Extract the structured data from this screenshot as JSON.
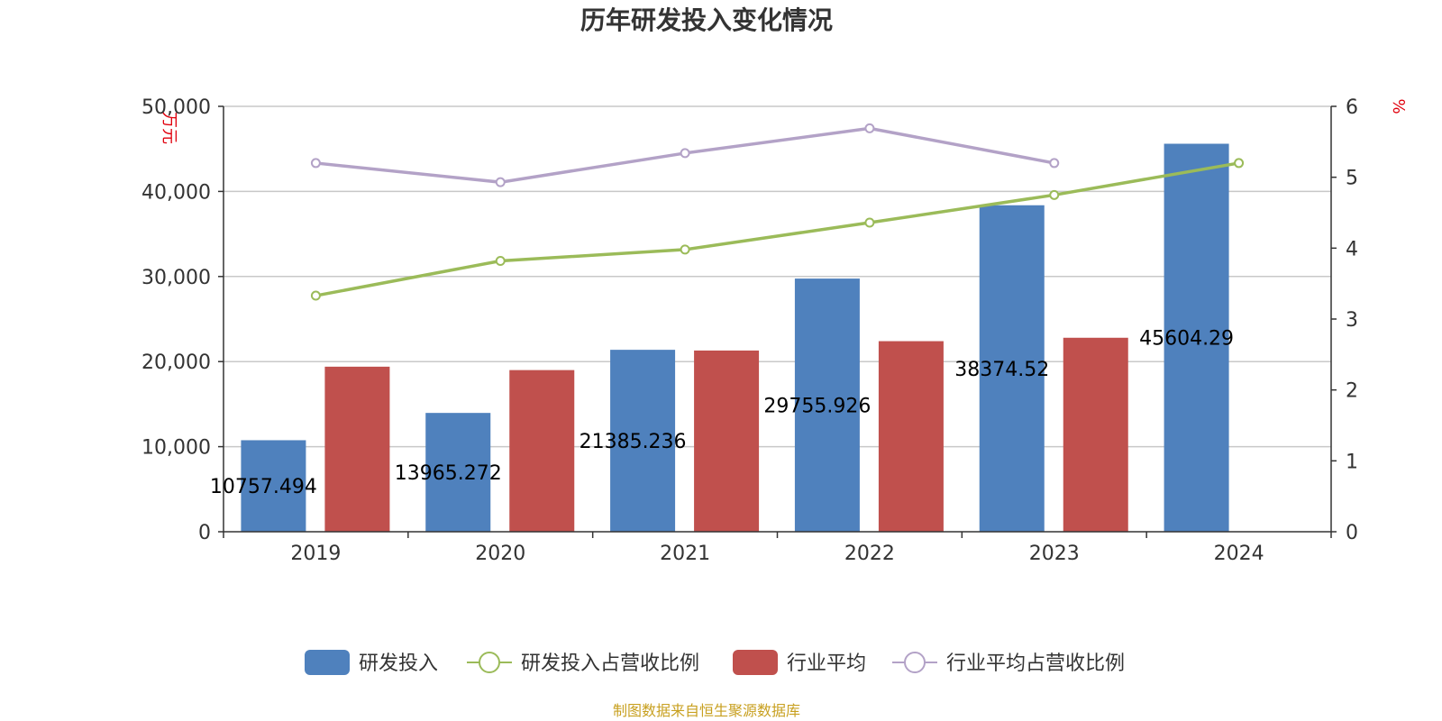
{
  "chart_data": {
    "type": "bar",
    "title": "历年研发投入变化情况",
    "categories": [
      "2019",
      "2020",
      "2021",
      "2022",
      "2023",
      "2024"
    ],
    "y_left": {
      "unit": "万元",
      "min": 0,
      "max": 50000,
      "ticks": [
        "0",
        "10,000",
        "20,000",
        "30,000",
        "40,000",
        "50,000"
      ]
    },
    "y_right": {
      "unit": "%",
      "min": 0,
      "max": 6,
      "ticks": [
        "0",
        "1",
        "2",
        "3",
        "4",
        "5",
        "6"
      ]
    },
    "series": [
      {
        "name": "研发投入",
        "kind": "bar",
        "axis": "left",
        "color": "#4f81bd",
        "values": [
          10757.494,
          13965.272,
          21385.236,
          29755.926,
          38374.52,
          45604.29
        ],
        "labels": [
          "10757.494",
          "13965.272",
          "21385.236",
          "29755.926",
          "38374.52",
          "45604.29"
        ]
      },
      {
        "name": "研发投入占营收比例",
        "kind": "line",
        "axis": "right",
        "color": "#9bbb59",
        "values": [
          3.33,
          3.82,
          3.98,
          4.36,
          4.75,
          5.2
        ]
      },
      {
        "name": "行业平均",
        "kind": "bar",
        "axis": "left",
        "color": "#c0504d",
        "values": [
          19400,
          19000,
          21300,
          22400,
          22800,
          null
        ]
      },
      {
        "name": "行业平均占营收比例",
        "kind": "line",
        "axis": "right",
        "color": "#b3a2c7",
        "values": [
          5.2,
          4.93,
          5.34,
          5.69,
          5.2,
          null
        ]
      }
    ],
    "grid": true,
    "legend_position": "bottom"
  },
  "source_note": "制图数据来自恒生聚源数据库"
}
